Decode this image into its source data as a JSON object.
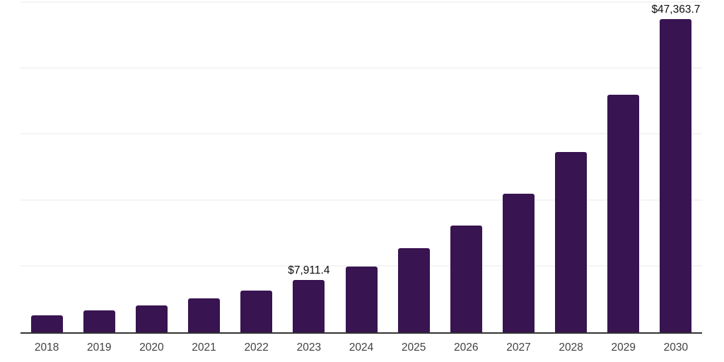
{
  "chart_data": {
    "type": "bar",
    "title": "",
    "xlabel": "",
    "ylabel": "",
    "categories": [
      "2018",
      "2019",
      "2020",
      "2021",
      "2022",
      "2023",
      "2024",
      "2025",
      "2026",
      "2027",
      "2028",
      "2029",
      "2030"
    ],
    "values": [
      2580,
      3330,
      4110,
      5100,
      6350,
      7911.4,
      9930,
      12670,
      16130,
      20960,
      27270,
      35920,
      47363.7
    ],
    "data_labels": [
      null,
      null,
      null,
      null,
      null,
      "$7,911.4",
      null,
      null,
      null,
      null,
      null,
      null,
      "$47,363.7"
    ],
    "ylim": [
      0,
      50000
    ],
    "gridline_values": [
      10000,
      20000,
      30000,
      40000,
      50000
    ],
    "grid": true,
    "legend_position": "none",
    "colors": {
      "bar": "#381451",
      "gridline": "#f4f4f4",
      "axis_line": "#333333",
      "tick_text": "#414141",
      "data_label_text": "#0d0d0d",
      "background": "#ffffff"
    }
  }
}
